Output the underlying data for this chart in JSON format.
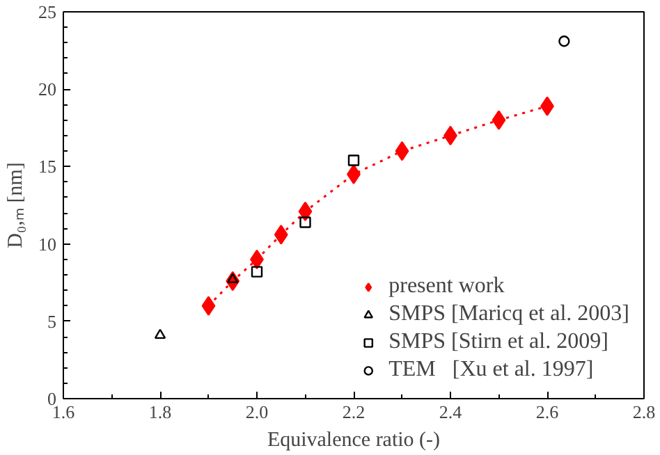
{
  "chart_data": {
    "type": "scatter",
    "xlabel": "Equivalence ratio (-)",
    "ylabel": "D₀,ₘ [nm]",
    "xlim": [
      1.6,
      2.8
    ],
    "ylim": [
      0,
      25
    ],
    "xticks": [
      {
        "value": 1.6,
        "label": "1.6"
      },
      {
        "value": 1.8,
        "label": "1.8"
      },
      {
        "value": 2.0,
        "label": "2.0"
      },
      {
        "value": 2.2,
        "label": "2.2"
      },
      {
        "value": 2.4,
        "label": "2.4"
      },
      {
        "value": 2.6,
        "label": "2.6"
      },
      {
        "value": 2.8,
        "label": "2.8"
      }
    ],
    "yticks": [
      0,
      5,
      10,
      15,
      20,
      25
    ],
    "grid": false,
    "legend": "bottom right",
    "series": [
      {
        "name": "present work",
        "type": "line",
        "marker": "diamond",
        "line_style": "dotted",
        "color": "#ff0000",
        "x": [
          1.9,
          1.95,
          2.0,
          2.05,
          2.1,
          2.2,
          2.3,
          2.4,
          2.5,
          2.6
        ],
        "values": [
          6.0,
          7.6,
          9.0,
          10.6,
          12.1,
          14.5,
          16.0,
          17.0,
          18.0,
          18.9
        ]
      },
      {
        "name": "SMPS [Maricq et al. 2003]",
        "marker": "triangle",
        "color": "#000000",
        "x": [
          1.8,
          1.95
        ],
        "values": [
          4.1,
          7.7
        ]
      },
      {
        "name": "SMPS [Stirn et al. 2009]",
        "marker": "square",
        "color": "#000000",
        "x": [
          2.0,
          2.1,
          2.2
        ],
        "values": [
          8.2,
          11.4,
          15.4
        ]
      },
      {
        "name": "TEM   [Xu et al. 1997]",
        "marker": "circle",
        "color": "#000000",
        "x": [
          2.635
        ],
        "values": [
          23.1
        ]
      }
    ]
  }
}
